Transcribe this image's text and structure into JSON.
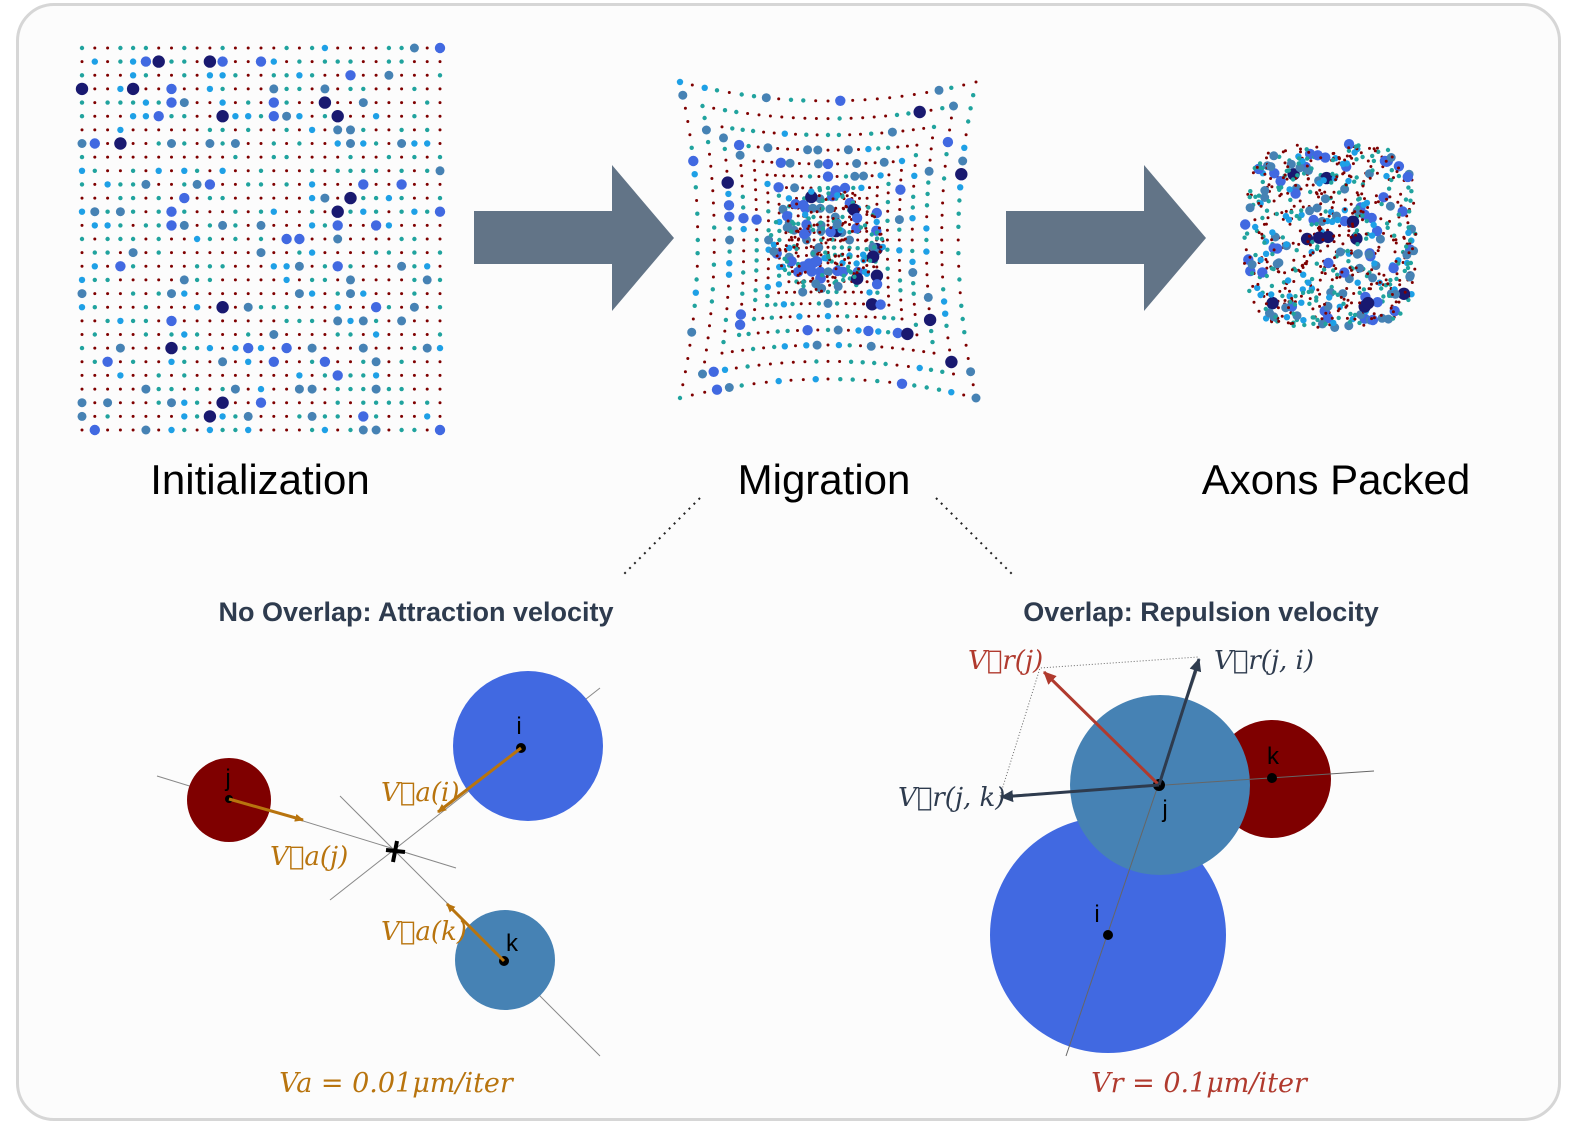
{
  "stages": {
    "initialization": "Initialization",
    "migration": "Migration",
    "packed": "Axons Packed"
  },
  "attraction": {
    "title": "No Overlap: Attraction velocity",
    "va_i": "V⃗a(i)",
    "va_j": "V⃗a(j)",
    "va_k": "V⃗a(k)",
    "formula": "Va = 0.01μm/iter",
    "label_i": "i",
    "label_j": "j",
    "label_k": "k"
  },
  "repulsion": {
    "title": "Overlap: Repulsion velocity",
    "vr_j": "V⃗r(j)",
    "vr_ji": "V⃗r(j, i)",
    "vr_jk": "V⃗r(j, k)",
    "formula": "Vr = 0.1μm/iter",
    "label_i": "i",
    "label_j": "j",
    "label_k": "k"
  },
  "colors": {
    "darkred": "#7f0000",
    "royal": "#4169e1",
    "steel": "#4682b4",
    "teal": "#20a39e",
    "navy": "#191970",
    "sky": "#1ea0e6",
    "arrow": "#627487",
    "orange": "#b8740e",
    "rust": "#b03a2e",
    "slate": "#2e3b4e"
  }
}
